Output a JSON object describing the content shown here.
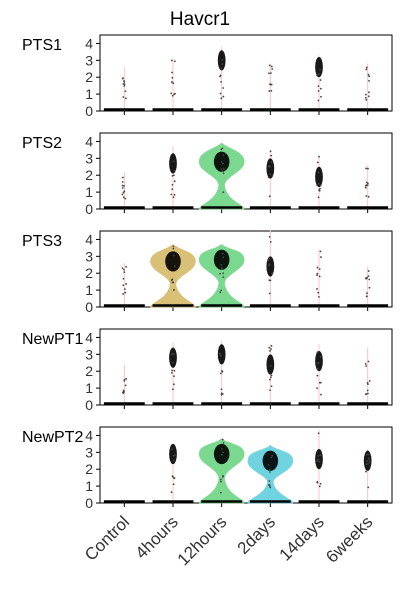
{
  "chart_data": {
    "type": "violin",
    "title": "Havcr1",
    "xlabel": "",
    "ylabel": "",
    "categories": [
      "Control",
      "4hours",
      "12hours",
      "2days",
      "14days",
      "6weeks"
    ],
    "ylim": [
      0,
      4.5
    ],
    "yticks": [
      0,
      1,
      2,
      3,
      4
    ],
    "panels": [
      {
        "name": "PTS1",
        "groups": [
          {
            "category": "Control",
            "max": 2.6,
            "mode_high": null,
            "color": "#ffc0cb"
          },
          {
            "category": "4hours",
            "max": 3.1,
            "mode_high": null,
            "color": "#ffc0cb"
          },
          {
            "category": "12hours",
            "max": 3.8,
            "mode_high": 3.0,
            "color": "#ffc0cb"
          },
          {
            "category": "2days",
            "max": 2.8,
            "mode_high": null,
            "color": "#ffc0cb"
          },
          {
            "category": "14days",
            "max": 3.3,
            "mode_high": 2.6,
            "color": "#ffc0cb"
          },
          {
            "category": "6weeks",
            "max": 2.8,
            "mode_high": null,
            "color": "#ffc0cb"
          }
        ]
      },
      {
        "name": "PTS2",
        "groups": [
          {
            "category": "Control",
            "max": 2.2,
            "mode_high": null,
            "color": "#ffc0cb"
          },
          {
            "category": "4hours",
            "max": 3.7,
            "mode_high": 2.7,
            "color": "#ffc0cb"
          },
          {
            "category": "12hours",
            "max": 3.9,
            "mode_high": 2.8,
            "color": "#7bd88f"
          },
          {
            "category": "2days",
            "max": 3.5,
            "mode_high": 2.4,
            "color": "#ffc0cb"
          },
          {
            "category": "14days",
            "max": 3.2,
            "mode_high": 1.9,
            "color": "#ffc0cb"
          },
          {
            "category": "6weeks",
            "max": 2.6,
            "mode_high": null,
            "color": "#ffc0cb"
          }
        ]
      },
      {
        "name": "PTS3",
        "groups": [
          {
            "category": "Control",
            "max": 2.6,
            "mode_high": null,
            "color": "#ffc0cb"
          },
          {
            "category": "4hours",
            "max": 3.7,
            "mode_high": 2.7,
            "color": "#d9c077"
          },
          {
            "category": "12hours",
            "max": 3.7,
            "mode_high": 2.8,
            "color": "#7bd88f"
          },
          {
            "category": "2days",
            "max": 4.6,
            "mode_high": 2.4,
            "color": "#ffc0cb"
          },
          {
            "category": "14days",
            "max": 3.4,
            "mode_high": null,
            "color": "#ffc0cb"
          },
          {
            "category": "6weeks",
            "max": 2.4,
            "mode_high": null,
            "color": "#ffc0cb"
          }
        ]
      },
      {
        "name": "NewPT1",
        "groups": [
          {
            "category": "Control",
            "max": 2.4,
            "mode_high": null,
            "color": "#ffc0cb"
          },
          {
            "category": "4hours",
            "max": 3.7,
            "mode_high": 2.8,
            "color": "#ffc0cb"
          },
          {
            "category": "12hours",
            "max": 3.8,
            "mode_high": 3.0,
            "color": "#ffc0cb"
          },
          {
            "category": "2days",
            "max": 3.6,
            "mode_high": 2.4,
            "color": "#ffc0cb"
          },
          {
            "category": "14days",
            "max": 3.6,
            "mode_high": 2.6,
            "color": "#ffc0cb"
          },
          {
            "category": "6weeks",
            "max": 3.4,
            "mode_high": null,
            "color": "#ffc0cb"
          }
        ]
      },
      {
        "name": "NewPT2",
        "groups": [
          {
            "category": "Control",
            "max": 0.1,
            "mode_high": null,
            "color": "#ffc0cb"
          },
          {
            "category": "4hours",
            "max": 3.5,
            "mode_high": 2.9,
            "color": "#ffc0cb"
          },
          {
            "category": "12hours",
            "max": 3.8,
            "mode_high": 2.9,
            "color": "#7bd88f"
          },
          {
            "category": "2days",
            "max": 3.4,
            "mode_high": 2.5,
            "color": "#6fd3e0"
          },
          {
            "category": "14days",
            "max": 4.3,
            "mode_high": 2.6,
            "color": "#ffc0cb"
          },
          {
            "category": "6weeks",
            "max": 3.2,
            "mode_high": 2.5,
            "color": "#ffc0cb"
          }
        ]
      }
    ],
    "grid": false,
    "legend": "none"
  },
  "colors": {
    "axis": "#000000",
    "tick_text": "#333333",
    "default_violin": "#ffc0cb",
    "points": "#000000"
  }
}
